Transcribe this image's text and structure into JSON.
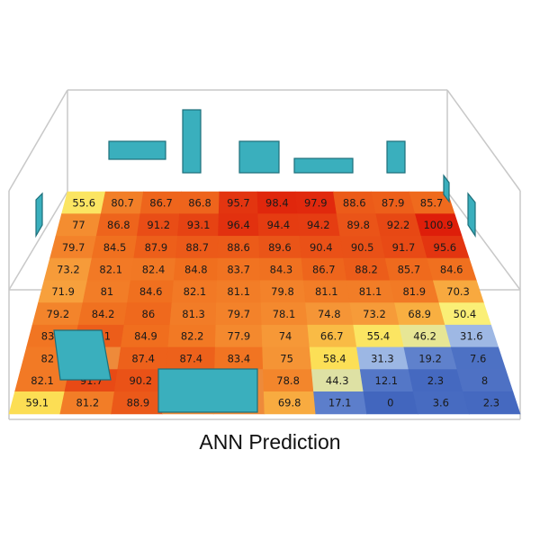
{
  "caption": "ANN Prediction",
  "grid": {
    "rows": [
      [
        "55.6",
        "80.7",
        "86.7",
        "86.8",
        "95.7",
        "98.4",
        "97.9",
        "88.6",
        "87.9",
        "85.7"
      ],
      [
        "77",
        "86.8",
        "91.2",
        "93.1",
        "96.4",
        "94.4",
        "94.2",
        "89.8",
        "92.2",
        "100.9"
      ],
      [
        "79.7",
        "84.5",
        "87.9",
        "88.7",
        "88.6",
        "89.6",
        "90.4",
        "90.5",
        "91.7",
        "95.6"
      ],
      [
        "73.2",
        "82.1",
        "82.4",
        "84.8",
        "83.7",
        "84.3",
        "86.7",
        "88.2",
        "85.7",
        "84.6"
      ],
      [
        "71.9",
        "81",
        "84.6",
        "82.1",
        "81.1",
        "79.8",
        "81.1",
        "81.1",
        "81.9",
        "70.3"
      ],
      [
        "79.2",
        "84.2",
        "86",
        "81.3",
        "79.7",
        "78.1",
        "74.8",
        "73.2",
        "68.9",
        "50.4"
      ],
      [
        "83.1",
        "88.1",
        "84.9",
        "82.2",
        "77.9",
        "74",
        "66.7",
        "55.4",
        "46.2",
        "31.6"
      ],
      [
        "82",
        "",
        "87.4",
        "87.4",
        "83.4",
        "75",
        "58.4",
        "31.3",
        "19.2",
        "7.6"
      ],
      [
        "82.1",
        "91.7",
        "90.2",
        "",
        "",
        "78.8",
        "44.3",
        "12.1",
        "2.3",
        "8"
      ],
      [
        "59.1",
        "81.2",
        "88.9",
        "",
        "",
        "69.8",
        "17.1",
        "0",
        "3.6",
        "2.3"
      ]
    ]
  },
  "colors": {
    "wall_line": "#c8c8c8",
    "window_fill": "#3aafbd",
    "window_stroke": "#1d6f7a"
  }
}
